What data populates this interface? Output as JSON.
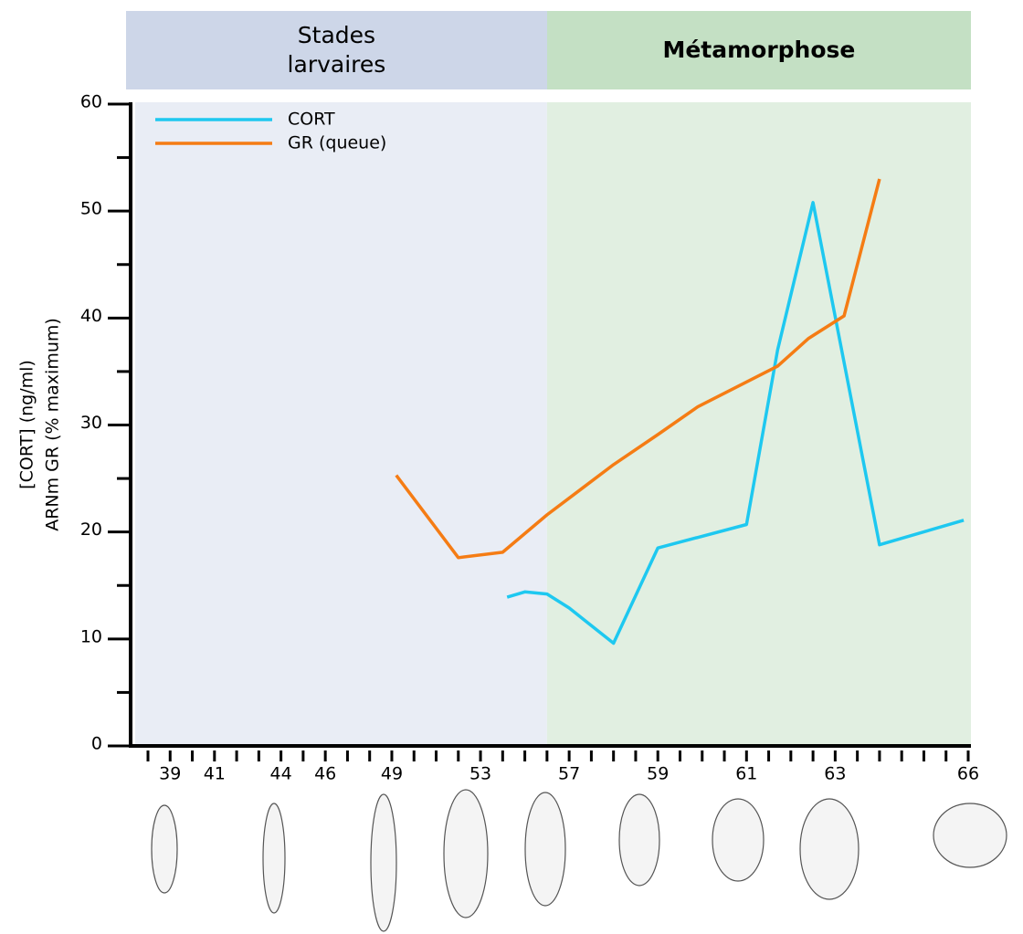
{
  "chart_data": {
    "type": "line",
    "y_label_lines": [
      "[CORT] (ng/ml)",
      "ARNm GR (% maximum)"
    ],
    "phases": [
      {
        "label": "Stades larvaires",
        "range": [
          37.2,
          56
        ],
        "header_color": "#cdd6e8",
        "color": "#e9edf5",
        "bold": false
      },
      {
        "label": "Métamorphose",
        "range": [
          56,
          66
        ],
        "header_color": "#c4e0c4",
        "color": "#e1efe1",
        "bold": true
      }
    ],
    "xlim": [
      37.2,
      66
    ],
    "xticks": [
      39,
      41,
      44,
      46,
      49,
      53,
      57,
      59,
      61,
      63,
      66
    ],
    "xminorticks": [
      38,
      40,
      42,
      43,
      45,
      47,
      48,
      50,
      51,
      52,
      54,
      55,
      56,
      57.5,
      58,
      58.5,
      59.5,
      60,
      60.5,
      61.5,
      62,
      62.5,
      63.5,
      64,
      64.5,
      65,
      65.5
    ],
    "ylim": [
      0,
      60
    ],
    "yticks": [
      0,
      10,
      20,
      30,
      40,
      50,
      60
    ],
    "yminorticks": [
      5,
      15,
      25,
      35,
      45,
      55
    ],
    "series": [
      {
        "name": "CORT",
        "color": "#1ec8f0",
        "x": [
          54.2,
          55,
          56,
          57,
          58,
          59,
          61,
          61.7,
          62.5,
          64,
          65.9
        ],
        "values": [
          13.9,
          14.4,
          14.2,
          12.9,
          9.6,
          18.5,
          20.7,
          37,
          50.8,
          18.8,
          21.1
        ]
      },
      {
        "name": "GR (queue)",
        "color": "#f57c14",
        "x": [
          49.2,
          52,
          54,
          56,
          58,
          59,
          59.9,
          61.7,
          62.4,
          63.2,
          64
        ],
        "values": [
          25.3,
          17.6,
          18.1,
          21.6,
          26.3,
          29.1,
          31.7,
          35.5,
          38.1,
          40.2,
          53
        ]
      }
    ]
  }
}
